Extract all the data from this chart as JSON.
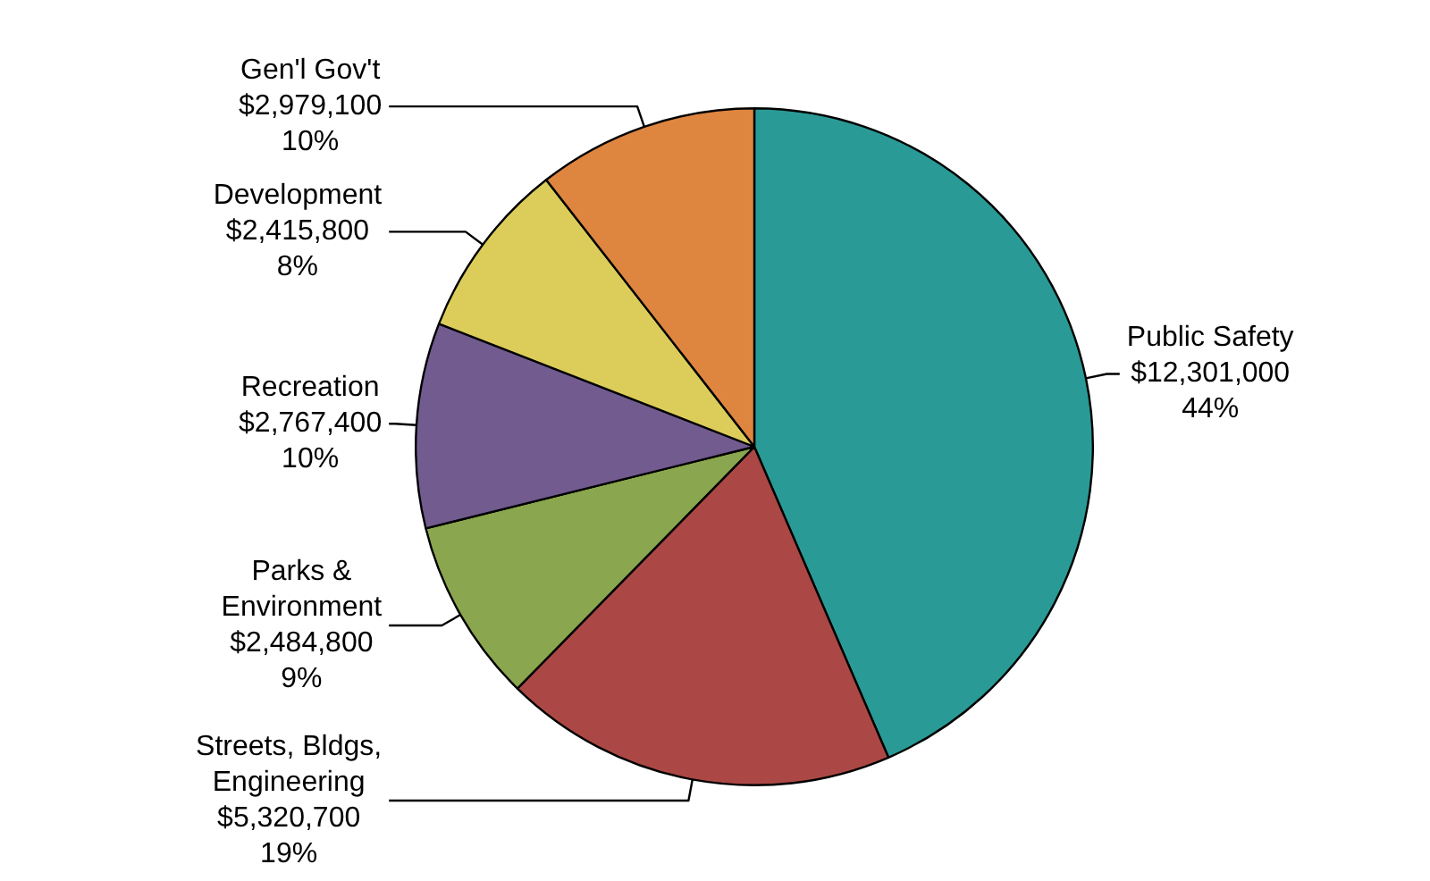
{
  "chart_data": {
    "type": "pie",
    "categories": [
      "Public Safety",
      "Streets, Bldgs,\nEngineering",
      "Parks &\nEnvironment",
      "Recreation",
      "Development",
      "Gen'l Gov't"
    ],
    "values": [
      12301000,
      5320700,
      2484800,
      2767400,
      2415800,
      2979100
    ],
    "colors": [
      "#2a9a96",
      "#ab4845",
      "#8aa64e",
      "#725b8f",
      "#dccd5a",
      "#de8540"
    ],
    "value_labels": [
      "$12,301,000\n44%",
      "$5,320,700\n19%",
      "$2,484,800\n9%",
      "$2,767,400\n10%",
      "$2,415,800\n8%",
      "$2,979,100\n10%"
    ],
    "legend": false
  }
}
